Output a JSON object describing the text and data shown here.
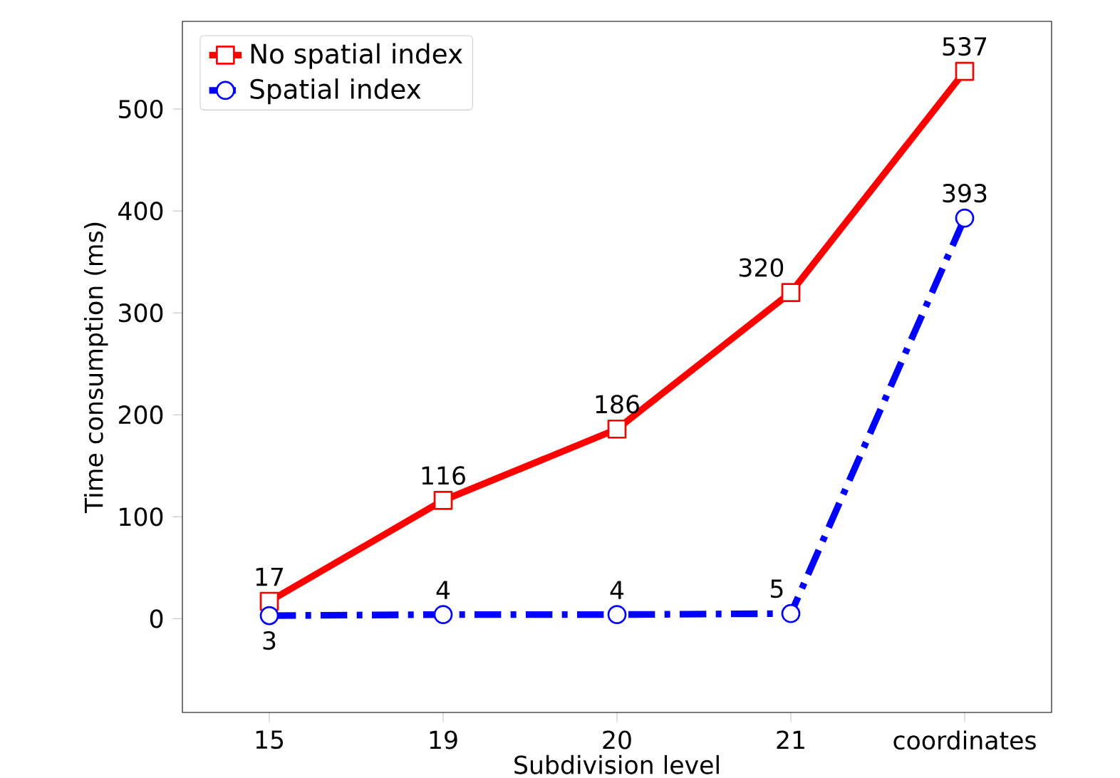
{
  "chart_data": {
    "type": "line",
    "xlabel": "Subdivision level",
    "ylabel": "Time consumption (ms)",
    "categories": [
      "15",
      "19",
      "20",
      "21",
      "coordinates"
    ],
    "series": [
      {
        "name": "No spatial index",
        "color": "#ff0000",
        "values": [
          17,
          116,
          186,
          320,
          537
        ],
        "marker": "square",
        "line_style": "solid"
      },
      {
        "name": "Spatial index",
        "color": "#0000ff",
        "values": [
          3,
          4,
          4,
          5,
          393
        ],
        "marker": "circle",
        "line_style": "dashdot"
      }
    ],
    "ylim": [
      -92,
      586
    ],
    "yticks": [
      0,
      100,
      200,
      300,
      400,
      500
    ],
    "data_labels": true,
    "legend": "top left",
    "grid": false
  }
}
